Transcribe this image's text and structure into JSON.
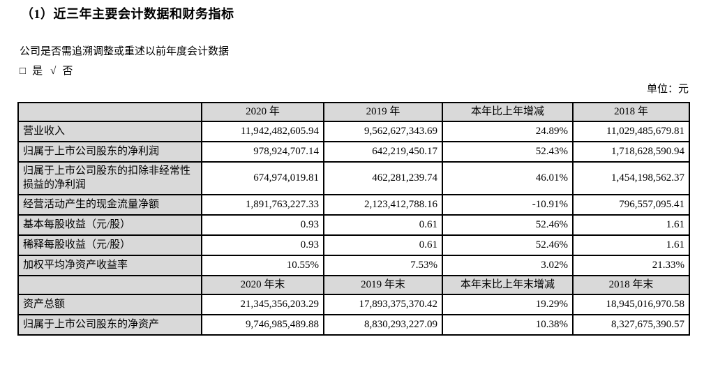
{
  "page": {
    "title": "（1）近三年主要会计数据和财务指标",
    "restatement_question": "公司是否需追溯调整或重述以前年度会计数据",
    "answer": {
      "unchecked_symbol": "□",
      "yes_label": "是",
      "check_symbol": "√",
      "no_label": "否"
    },
    "unit_label": "单位：元"
  },
  "colors": {
    "header_bg": "#d9d9d9",
    "label_bg": "#d9d9d9",
    "border": "#000000",
    "text": "#000000",
    "page_bg": "#ffffff"
  },
  "table": {
    "section1": {
      "headers": [
        "",
        "2020 年",
        "2019 年",
        "本年比上年增减",
        "2018 年"
      ],
      "rows": [
        {
          "label": "营业收入",
          "values": [
            "11,942,482,605.94",
            "9,562,627,343.69",
            "24.89%",
            "11,029,485,679.81"
          ]
        },
        {
          "label": "归属于上市公司股东的净利润",
          "values": [
            "978,924,707.14",
            "642,219,450.17",
            "52.43%",
            "1,718,628,590.94"
          ]
        },
        {
          "label": "归属于上市公司股东的扣除非经常性损益的净利润",
          "values": [
            "674,974,019.81",
            "462,281,239.74",
            "46.01%",
            "1,454,198,562.37"
          ]
        },
        {
          "label": "经营活动产生的现金流量净额",
          "values": [
            "1,891,763,227.33",
            "2,123,412,788.16",
            "-10.91%",
            "796,557,095.41"
          ]
        },
        {
          "label": "基本每股收益（元/股）",
          "values": [
            "0.93",
            "0.61",
            "52.46%",
            "1.61"
          ]
        },
        {
          "label": "稀释每股收益（元/股）",
          "values": [
            "0.93",
            "0.61",
            "52.46%",
            "1.61"
          ]
        },
        {
          "label": "加权平均净资产收益率",
          "values": [
            "10.55%",
            "7.53%",
            "3.02%",
            "21.33%"
          ]
        }
      ]
    },
    "section2": {
      "headers": [
        "",
        "2020 年末",
        "2019 年末",
        "本年末比上年末增减",
        "2018 年末"
      ],
      "rows": [
        {
          "label": "资产总额",
          "values": [
            "21,345,356,203.29",
            "17,893,375,370.42",
            "19.29%",
            "18,945,016,970.58"
          ]
        },
        {
          "label": "归属于上市公司股东的净资产",
          "values": [
            "9,746,985,489.88",
            "8,830,293,227.09",
            "10.38%",
            "8,327,675,390.57"
          ]
        }
      ]
    }
  }
}
